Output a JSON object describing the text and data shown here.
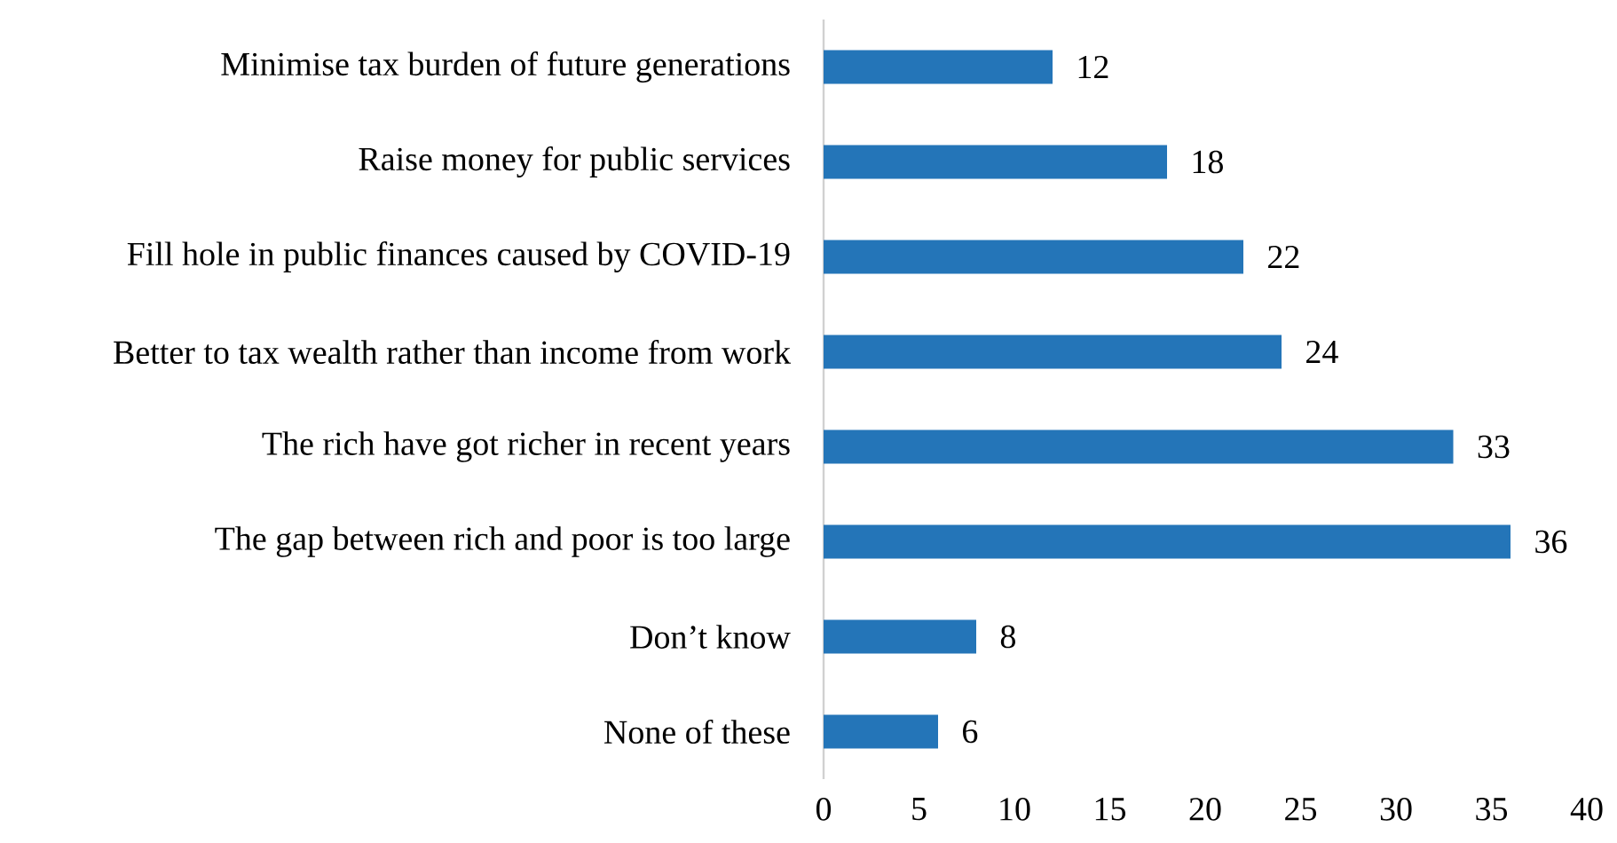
{
  "chart_data": {
    "type": "bar",
    "orientation": "horizontal",
    "categories": [
      "Minimise tax burden of future generations",
      "Raise money for public services",
      "Fill hole in public finances caused by COVID-19",
      "Better to tax wealth rather than income from work",
      "The rich have got richer in recent years",
      "The gap between rich and poor is too large",
      "Don’t know",
      "None of these"
    ],
    "values": [
      12,
      18,
      22,
      24,
      33,
      36,
      8,
      6
    ],
    "color": "#2475b8",
    "xlim": [
      0,
      40
    ],
    "xticks": [
      0,
      5,
      10,
      15,
      20,
      25,
      30,
      35,
      40
    ],
    "data_labels": true
  }
}
